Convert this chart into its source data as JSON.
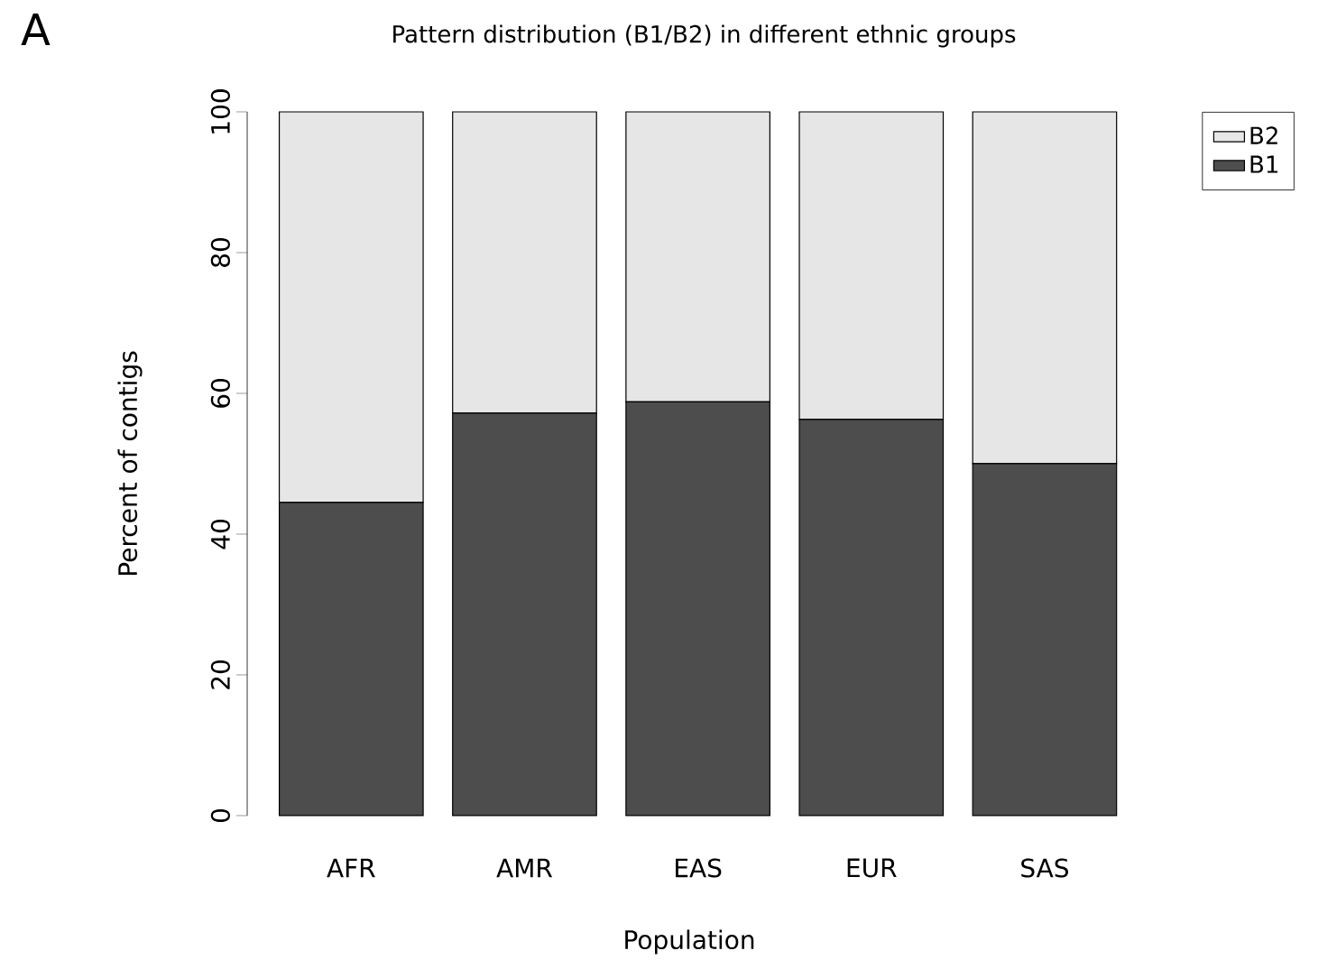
{
  "chart_data": {
    "type": "bar",
    "stacked": true,
    "title": "Pattern distribution (B1/B2) in different ethnic groups",
    "xlabel": "Population",
    "ylabel": "Percent of contigs",
    "categories": [
      "AFR",
      "AMR",
      "EAS",
      "EUR",
      "SAS"
    ],
    "series": [
      {
        "name": "B1",
        "color": "#4d4d4d",
        "values": [
          44.5,
          57.2,
          58.8,
          56.3,
          50.0
        ]
      },
      {
        "name": "B2",
        "color": "#e6e6e6",
        "values": [
          55.5,
          42.8,
          41.2,
          43.7,
          50.0
        ]
      }
    ],
    "ylim": [
      0,
      100
    ],
    "yticks": [
      0,
      20,
      40,
      60,
      80,
      100
    ],
    "grid": false,
    "legend": "top right",
    "annotations": [
      "A"
    ]
  }
}
